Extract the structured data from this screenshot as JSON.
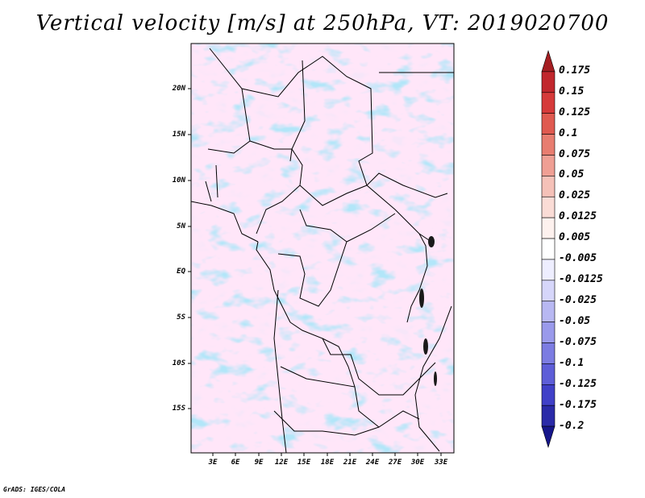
{
  "title": "Vertical velocity [m/s] at 250hPa, VT: 2019020700",
  "credit": "GrADS: IGES/COLA",
  "map": {
    "lat_labels": [
      "20N",
      "15N",
      "10N",
      "5N",
      "EQ",
      "5S",
      "10S",
      "15S"
    ],
    "lon_labels": [
      "3E",
      "6E",
      "9E",
      "12E",
      "15E",
      "18E",
      "21E",
      "24E",
      "27E",
      "30E",
      "33E"
    ],
    "field": "vertical velocity",
    "level": "250hPa",
    "units": "m/s",
    "valid_time": "2019020700"
  },
  "colorbar": {
    "labels": [
      "0.175",
      "0.15",
      "0.125",
      "0.1",
      "0.075",
      "0.05",
      "0.025",
      "0.0125",
      "0.005",
      "-0.005",
      "-0.0125",
      "-0.025",
      "-0.05",
      "-0.075",
      "-0.1",
      "-0.125",
      "-0.175",
      "-0.2"
    ],
    "colors": [
      "#a51e22",
      "#c1272d",
      "#d63a3a",
      "#e05a50",
      "#e87d70",
      "#ef9f94",
      "#f5c1b8",
      "#fadcd6",
      "#fdf1ee",
      "#ffffff",
      "#eeeeff",
      "#d6d6fa",
      "#b8b8f2",
      "#9a9aeb",
      "#7c7ce2",
      "#5e5ed8",
      "#4040c8",
      "#2a2aa8",
      "#16168a"
    ]
  }
}
